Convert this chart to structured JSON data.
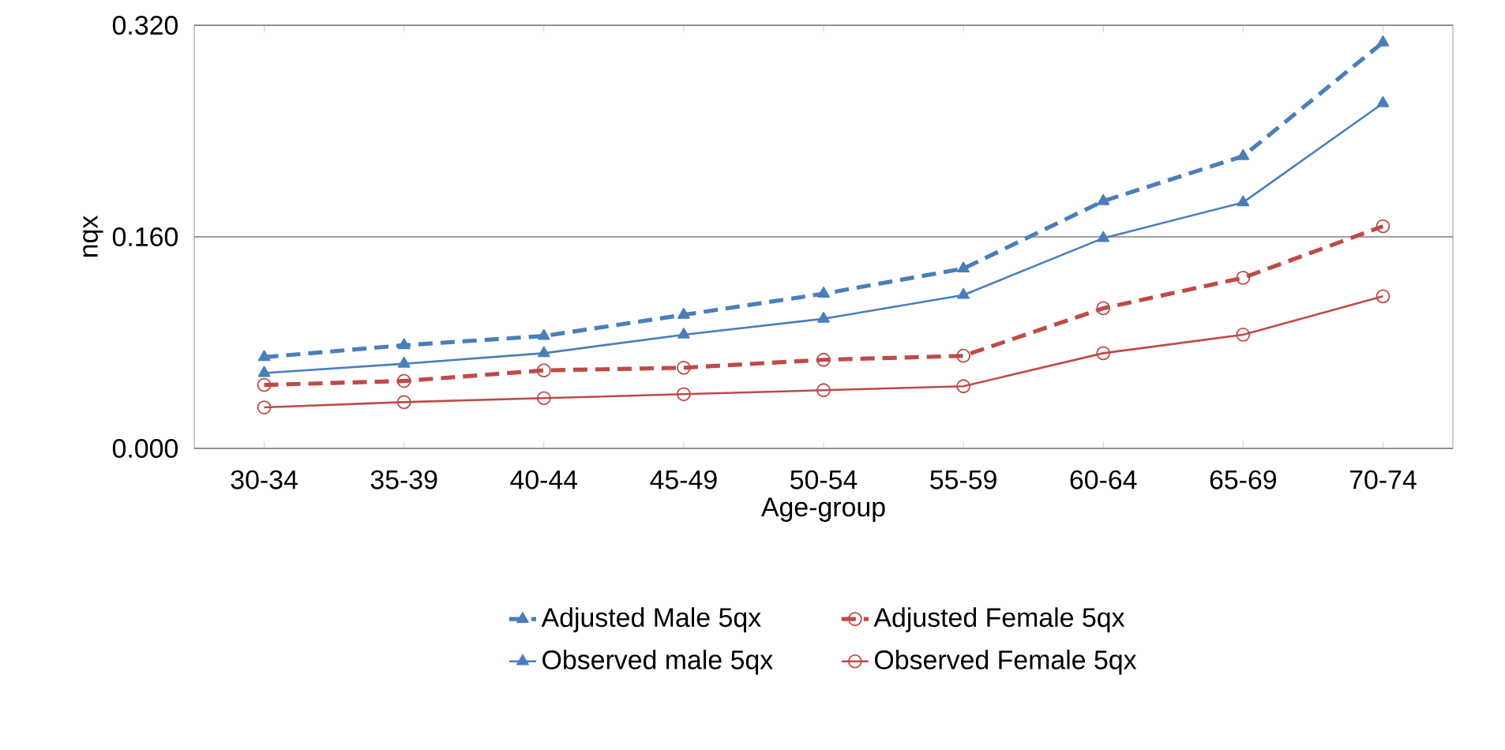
{
  "chart_data": {
    "type": "line",
    "xlabel": "Age-group",
    "ylabel": "nqx",
    "categories": [
      "30-34",
      "35-39",
      "40-44",
      "45-49",
      "50-54",
      "55-59",
      "60-64",
      "65-69",
      "70-74"
    ],
    "series": [
      {
        "name": "Adjusted Male 5qx",
        "color": "#4a7ebb",
        "marker": "triangle",
        "line_style": "dashed",
        "values": [
          0.069,
          0.078,
          0.085,
          0.101,
          0.117,
          0.136,
          0.187,
          0.221,
          0.307
        ]
      },
      {
        "name": "Adjusted Female 5qx",
        "color": "#be4b48",
        "marker": "circle",
        "line_style": "dashed",
        "values": [
          0.048,
          0.051,
          0.059,
          0.061,
          0.067,
          0.07,
          0.106,
          0.129,
          0.168
        ]
      },
      {
        "name": "Observed male  5qx",
        "color": "#4a7ebb",
        "marker": "triangle",
        "line_style": "solid",
        "values": [
          0.057,
          0.064,
          0.072,
          0.086,
          0.098,
          0.116,
          0.159,
          0.186,
          0.261
        ]
      },
      {
        "name": "Observed Female 5qx",
        "color": "#be4b48",
        "marker": "circle",
        "line_style": "solid",
        "values": [
          0.031,
          0.035,
          0.038,
          0.041,
          0.044,
          0.047,
          0.072,
          0.086,
          0.115
        ]
      }
    ],
    "ylim": [
      0,
      0.32
    ],
    "yticks": [
      {
        "value": 0,
        "label": "0.000"
      },
      {
        "value": 0.16,
        "label": "0.160"
      },
      {
        "value": 0.32,
        "label": "0.320"
      }
    ],
    "grid": "y",
    "legend": "bottom"
  }
}
